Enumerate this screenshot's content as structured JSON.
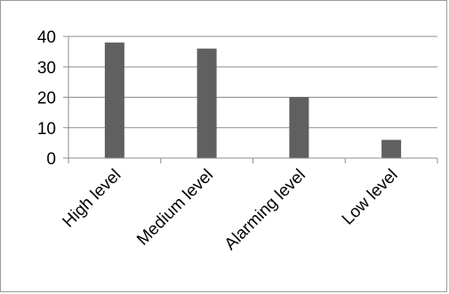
{
  "chart_data": {
    "type": "bar",
    "categories": [
      "High level",
      "Medium level",
      "Alarming level",
      "Low level"
    ],
    "values": [
      38,
      36,
      20,
      6
    ],
    "ylim": [
      0,
      40
    ],
    "yticks": [
      0,
      10,
      20,
      30,
      40
    ],
    "grid": true,
    "colors": {
      "bar": "#606060",
      "grid": "#8c8c8c",
      "axis": "#8c8c8c",
      "frame": "#9b9b9b"
    }
  }
}
